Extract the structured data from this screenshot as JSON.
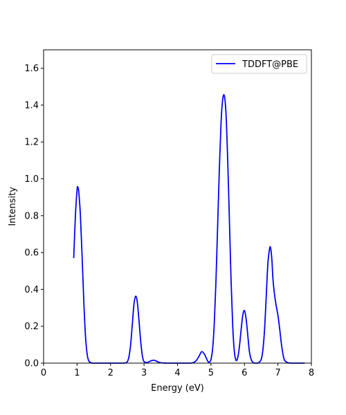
{
  "chart_data": {
    "type": "line",
    "title": "",
    "xlabel": "Energy (eV)",
    "ylabel": "Intensity",
    "xlim": [
      0,
      8
    ],
    "ylim": [
      0,
      1.7
    ],
    "xticks": [
      0,
      1,
      2,
      3,
      4,
      5,
      6,
      7,
      8
    ],
    "xtick_labels": [
      "0",
      "1",
      "2",
      "3",
      "4",
      "5",
      "6",
      "7",
      "8"
    ],
    "yticks": [
      0.0,
      0.2,
      0.4,
      0.6,
      0.8,
      1.0,
      1.2,
      1.4,
      1.6
    ],
    "ytick_labels": [
      "0.0",
      "0.2",
      "0.4",
      "0.6",
      "0.8",
      "1.0",
      "1.2",
      "1.4",
      "1.6"
    ],
    "grid": false,
    "legend_position": "top-right",
    "series": [
      {
        "name": "TDDFT@PBE",
        "color": "#0000ff",
        "x": [
          0.9,
          0.95,
          1.0,
          1.02,
          1.05,
          1.1,
          1.15,
          1.2,
          1.25,
          1.3,
          1.35,
          1.45,
          1.6,
          2.0,
          2.4,
          2.5,
          2.55,
          2.6,
          2.65,
          2.7,
          2.75,
          2.8,
          2.85,
          2.9,
          2.95,
          3.0,
          3.1,
          3.2,
          3.3,
          3.4,
          3.5,
          3.7,
          4.0,
          4.4,
          4.55,
          4.65,
          4.72,
          4.8,
          4.9,
          4.95,
          5.0,
          5.05,
          5.1,
          5.15,
          5.2,
          5.25,
          5.3,
          5.35,
          5.4,
          5.45,
          5.5,
          5.55,
          5.6,
          5.65,
          5.7,
          5.75,
          5.8,
          5.85,
          5.9,
          5.95,
          6.0,
          6.05,
          6.1,
          6.15,
          6.2,
          6.25,
          6.3,
          6.4,
          6.5,
          6.55,
          6.6,
          6.65,
          6.7,
          6.75,
          6.78,
          6.82,
          6.85,
          6.9,
          6.95,
          7.0,
          7.05,
          7.1,
          7.15,
          7.2,
          7.3,
          7.4,
          7.6,
          7.8
        ],
        "y": [
          0.57,
          0.8,
          0.94,
          0.955,
          0.93,
          0.8,
          0.58,
          0.34,
          0.15,
          0.05,
          0.012,
          0.0,
          0.0,
          0.0,
          0.0,
          0.008,
          0.035,
          0.1,
          0.21,
          0.32,
          0.363,
          0.33,
          0.23,
          0.12,
          0.04,
          0.008,
          0.004,
          0.012,
          0.016,
          0.008,
          0.002,
          0.0,
          0.0,
          0.0,
          0.012,
          0.04,
          0.062,
          0.05,
          0.012,
          0.005,
          0.02,
          0.08,
          0.22,
          0.45,
          0.75,
          1.05,
          1.3,
          1.43,
          1.45,
          1.35,
          1.1,
          0.78,
          0.45,
          0.2,
          0.06,
          0.015,
          0.03,
          0.09,
          0.18,
          0.26,
          0.285,
          0.24,
          0.15,
          0.06,
          0.02,
          0.005,
          0.0,
          0.0,
          0.02,
          0.07,
          0.18,
          0.36,
          0.54,
          0.62,
          0.625,
          0.56,
          0.46,
          0.37,
          0.31,
          0.26,
          0.19,
          0.11,
          0.05,
          0.015,
          0.002,
          0.0,
          0.0,
          0.0
        ]
      }
    ]
  }
}
